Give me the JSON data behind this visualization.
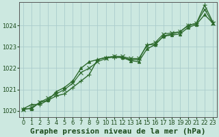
{
  "title": "Graphe pression niveau de la mer (hPa)",
  "bg_color": "#cce8e0",
  "plot_bg_color": "#cce8e0",
  "grid_color": "#aacccc",
  "line_color": "#2d6a2d",
  "marker_color": "#2d6a2d",
  "xlim": [
    -0.5,
    23.5
  ],
  "ylim": [
    1019.7,
    1025.1
  ],
  "yticks": [
    1020,
    1021,
    1022,
    1023,
    1024
  ],
  "xticks": [
    0,
    1,
    2,
    3,
    4,
    5,
    6,
    7,
    8,
    9,
    10,
    11,
    12,
    13,
    14,
    15,
    16,
    17,
    18,
    19,
    20,
    21,
    22,
    23
  ],
  "series": [
    [
      1020.1,
      1020.3,
      1020.3,
      1020.5,
      1020.7,
      1020.8,
      1021.1,
      1021.4,
      1021.7,
      1022.4,
      1022.5,
      1022.5,
      1022.5,
      1022.4,
      1022.4,
      1023.1,
      1023.1,
      1023.5,
      1023.6,
      1023.7,
      1024.0,
      1024.1,
      1024.95,
      1024.15
    ],
    [
      1020.1,
      1020.1,
      1020.4,
      1020.5,
      1020.9,
      1021.1,
      1021.4,
      1022.0,
      1022.3,
      1022.4,
      1022.5,
      1022.55,
      1022.5,
      1022.35,
      1022.3,
      1022.9,
      1023.1,
      1023.5,
      1023.55,
      1023.6,
      1023.9,
      1024.05,
      1024.5,
      1024.1
    ],
    [
      1020.05,
      1020.15,
      1020.4,
      1020.6,
      1020.8,
      1021.0,
      1021.3,
      1021.8,
      1022.0,
      1022.3,
      1022.45,
      1022.55,
      1022.55,
      1022.45,
      1022.45,
      1023.05,
      1023.2,
      1023.6,
      1023.65,
      1023.7,
      1024.0,
      1024.1,
      1024.75,
      1024.1
    ]
  ],
  "title_fontsize": 8,
  "tick_fontsize": 6,
  "title_color": "#1a4a1a",
  "tick_color": "#1a4a1a",
  "axis_color": "#555555",
  "marker_size": 3,
  "linewidth": 1.0
}
